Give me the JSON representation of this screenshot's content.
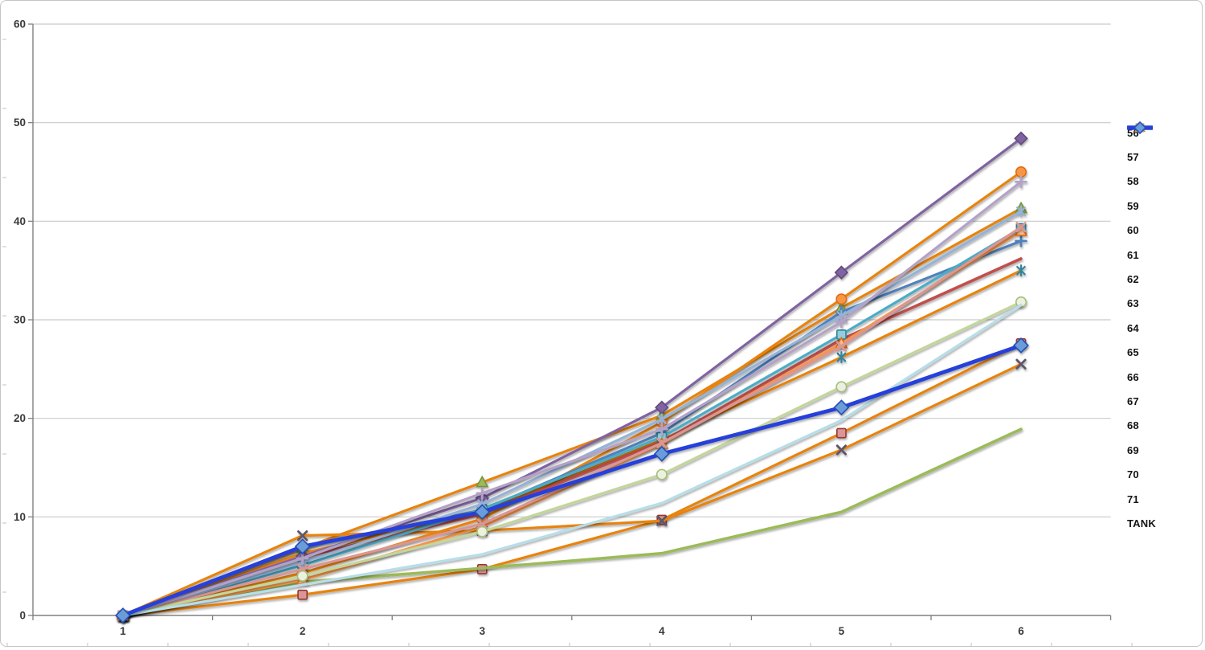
{
  "chart_data": {
    "type": "line",
    "title": "",
    "xlabel": "",
    "ylabel": "",
    "x": [
      1,
      2,
      3,
      4,
      5,
      6
    ],
    "x_tick_labels": [
      "1",
      "2",
      "3",
      "4",
      "5",
      "6"
    ],
    "y_tick_labels": [
      "0",
      "10",
      "20",
      "30",
      "40",
      "50",
      "60"
    ],
    "yticks": [
      0,
      10,
      20,
      30,
      40,
      50,
      60
    ],
    "ylim": [
      0,
      60
    ],
    "grid": "horizontal-major",
    "legend_position": "right",
    "colors": {
      "background": "#ffffff",
      "gridline": "#c9c9c9",
      "axis": "#808080",
      "tick_label": "#3a3a3a",
      "frame": "#c4c4c4"
    },
    "series": [
      {
        "name": "56",
        "line_color": "#E8830D",
        "line_width": 3.2,
        "marker": {
          "shape": "square",
          "fill": "#D99694",
          "stroke": "#953735"
        },
        "values": [
          0,
          2.1,
          4.7,
          9.7,
          18.5,
          27.6
        ]
      },
      {
        "name": "57",
        "line_color": "#E8830D",
        "line_width": 3.2,
        "marker": {
          "shape": "triangle",
          "fill": "#9BBB59",
          "stroke": "#76923C"
        },
        "values": [
          0,
          6.8,
          13.5,
          20.3,
          31.2,
          41.3
        ]
      },
      {
        "name": "58",
        "line_color": "#E8830D",
        "line_width": 3.2,
        "marker": {
          "shape": "x",
          "fill": "none",
          "stroke": "#5F5566"
        },
        "values": [
          0,
          8.1,
          8.6,
          9.6,
          16.8,
          25.5
        ]
      },
      {
        "name": "59",
        "line_color": "#E8830D",
        "line_width": 3.2,
        "marker": {
          "shape": "asterisk",
          "fill": "none",
          "stroke": "#31859C"
        },
        "values": [
          0,
          6.3,
          10.5,
          17.8,
          26.2,
          35.0
        ]
      },
      {
        "name": "60",
        "line_color": "#E8830D",
        "line_width": 3.2,
        "marker": {
          "shape": "circle",
          "fill": "#F79646",
          "stroke": "#E36C09"
        },
        "values": [
          0,
          4.3,
          9.8,
          19.6,
          32.1,
          45.0
        ]
      },
      {
        "name": "61",
        "line_color": "#4F81BD",
        "line_width": 3.2,
        "marker": {
          "shape": "plus",
          "fill": "none",
          "stroke": "#4F81BD"
        },
        "values": [
          0,
          6.9,
          10.7,
          18.5,
          30.8,
          38.0
        ]
      },
      {
        "name": "62",
        "line_color": "#C0504D",
        "line_width": 3.6,
        "marker": {
          "shape": "none",
          "fill": "none",
          "stroke": "none"
        },
        "values": [
          0,
          5.9,
          10.3,
          17.6,
          28.0,
          36.2
        ]
      },
      {
        "name": "63",
        "line_color": "#9BBB59",
        "line_width": 3.6,
        "marker": {
          "shape": "none",
          "fill": "none",
          "stroke": "none"
        },
        "values": [
          0,
          3.4,
          4.8,
          6.3,
          10.5,
          18.9
        ]
      },
      {
        "name": "64",
        "line_color": "#8064A2",
        "line_width": 3.2,
        "marker": {
          "shape": "diamond",
          "fill": "#8064A2",
          "stroke": "#5F497A"
        },
        "values": [
          0,
          6.0,
          11.9,
          21.1,
          34.8,
          48.4
        ]
      },
      {
        "name": "65",
        "line_color": "#4BACC6",
        "line_width": 3.2,
        "marker": {
          "shape": "square",
          "fill": "#92CDDC",
          "stroke": "#31859C"
        },
        "values": [
          0,
          5.1,
          10.8,
          18.1,
          28.5,
          39.3
        ]
      },
      {
        "name": "66",
        "line_color": "#F79646",
        "line_width": 3.2,
        "marker": {
          "shape": "triangle",
          "fill": "#FAC08F",
          "stroke": "#E36C09"
        },
        "values": [
          0,
          3.6,
          9.0,
          17.4,
          27.6,
          39.0
        ]
      },
      {
        "name": "67",
        "line_color": "#95B3D7",
        "line_width": 3.2,
        "marker": {
          "shape": "star4",
          "fill": "none",
          "stroke": "#95B3D7"
        },
        "values": [
          0,
          5.4,
          11.3,
          19.9,
          30.4,
          41.0
        ]
      },
      {
        "name": "68",
        "line_color": "#D99694",
        "line_width": 3.2,
        "marker": {
          "shape": "x",
          "fill": "none",
          "stroke": "#D99694"
        },
        "values": [
          0,
          4.7,
          9.3,
          17.5,
          27.3,
          39.4
        ]
      },
      {
        "name": "69",
        "line_color": "#C3D69B",
        "line_width": 3.2,
        "marker": {
          "shape": "circle",
          "fill": "#EBF1DE",
          "stroke": "#A6BE78"
        },
        "values": [
          0,
          4.0,
          8.5,
          14.3,
          23.2,
          31.8
        ]
      },
      {
        "name": "70",
        "line_color": "#B3A2C7",
        "line_width": 3.2,
        "marker": {
          "shape": "plus",
          "fill": "none",
          "stroke": "#B3A2C7"
        },
        "values": [
          0,
          5.8,
          12.4,
          18.9,
          29.8,
          44.0
        ]
      },
      {
        "name": "71",
        "line_color": "#B7DEE8",
        "line_width": 3.2,
        "marker": {
          "shape": "none",
          "fill": "none",
          "stroke": "none"
        },
        "values": [
          0,
          3.1,
          6.2,
          11.4,
          19.8,
          31.5
        ]
      },
      {
        "name": "TANK",
        "line_color": "#2640D9",
        "line_width": 4.8,
        "marker": {
          "shape": "diamond",
          "fill": "#6B9CD9",
          "stroke": "#244FB4"
        },
        "values": [
          0,
          7.0,
          10.5,
          16.4,
          21.1,
          27.4
        ]
      }
    ]
  }
}
